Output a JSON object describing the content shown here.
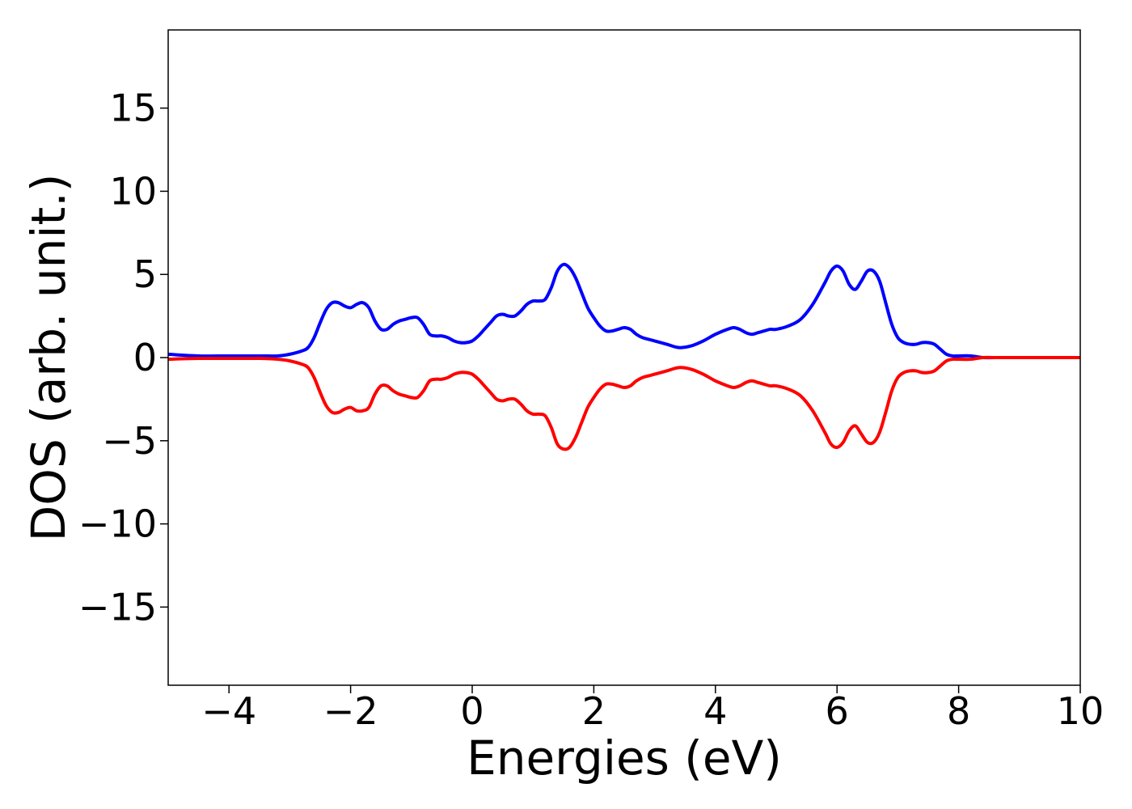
{
  "chart_data": {
    "type": "line",
    "title": "",
    "xlabel": "Energies (eV)",
    "ylabel": "DOS (arb. unit.)",
    "xlim": [
      -5,
      10
    ],
    "ylim": [
      -19.7,
      19.7
    ],
    "grid": false,
    "xticks": [
      -4,
      -2,
      0,
      2,
      4,
      6,
      8,
      10
    ],
    "xtick_labels": [
      "−4",
      "−2",
      "0",
      "2",
      "4",
      "6",
      "8",
      "10"
    ],
    "yticks": [
      15,
      10,
      5,
      0,
      -5,
      -10,
      -15
    ],
    "ytick_labels": [
      "15",
      "10",
      "5",
      "0",
      "−5",
      "−10",
      "−15"
    ],
    "x": [
      -5.0,
      -4.5,
      -4.0,
      -3.5,
      -3.2,
      -3.0,
      -2.8,
      -2.7,
      -2.6,
      -2.5,
      -2.4,
      -2.3,
      -2.2,
      -2.1,
      -2.0,
      -1.9,
      -1.8,
      -1.7,
      -1.6,
      -1.5,
      -1.4,
      -1.3,
      -1.2,
      -1.1,
      -1.0,
      -0.9,
      -0.8,
      -0.7,
      -0.6,
      -0.5,
      -0.4,
      -0.3,
      -0.2,
      -0.1,
      0.0,
      0.1,
      0.2,
      0.3,
      0.4,
      0.5,
      0.6,
      0.7,
      0.8,
      0.9,
      1.0,
      1.1,
      1.2,
      1.3,
      1.4,
      1.5,
      1.6,
      1.7,
      1.8,
      1.9,
      2.0,
      2.1,
      2.2,
      2.3,
      2.4,
      2.5,
      2.6,
      2.7,
      2.8,
      2.9,
      3.0,
      3.2,
      3.4,
      3.6,
      3.8,
      4.0,
      4.2,
      4.3,
      4.4,
      4.5,
      4.6,
      4.7,
      4.8,
      4.9,
      5.0,
      5.2,
      5.4,
      5.6,
      5.8,
      5.9,
      6.0,
      6.1,
      6.2,
      6.3,
      6.4,
      6.5,
      6.6,
      6.7,
      6.8,
      6.9,
      7.0,
      7.1,
      7.2,
      7.3,
      7.4,
      7.5,
      7.6,
      7.7,
      7.8,
      7.9,
      8.0,
      8.2,
      8.4,
      8.6,
      9.0,
      10.0
    ],
    "series": [
      {
        "color": "#0000ff",
        "values": [
          0.2,
          0.1,
          0.1,
          0.1,
          0.1,
          0.2,
          0.4,
          0.6,
          1.2,
          2.1,
          2.9,
          3.3,
          3.3,
          3.1,
          3.0,
          3.2,
          3.3,
          3.0,
          2.2,
          1.7,
          1.7,
          2.0,
          2.2,
          2.3,
          2.4,
          2.4,
          2.0,
          1.4,
          1.3,
          1.3,
          1.2,
          1.0,
          0.9,
          0.9,
          1.0,
          1.3,
          1.7,
          2.1,
          2.5,
          2.6,
          2.5,
          2.5,
          2.8,
          3.2,
          3.4,
          3.4,
          3.5,
          4.2,
          5.2,
          5.6,
          5.4,
          4.8,
          3.9,
          3.0,
          2.4,
          1.9,
          1.6,
          1.6,
          1.7,
          1.8,
          1.7,
          1.4,
          1.2,
          1.1,
          1.0,
          0.8,
          0.6,
          0.7,
          1.0,
          1.4,
          1.7,
          1.8,
          1.7,
          1.5,
          1.4,
          1.5,
          1.6,
          1.7,
          1.7,
          1.9,
          2.3,
          3.2,
          4.5,
          5.2,
          5.5,
          5.2,
          4.4,
          4.1,
          4.6,
          5.2,
          5.2,
          4.6,
          3.3,
          2.0,
          1.2,
          0.9,
          0.8,
          0.8,
          0.9,
          0.9,
          0.8,
          0.5,
          0.2,
          0.1,
          0.1,
          0.1,
          0.0,
          0.0,
          0.0,
          0.0
        ]
      },
      {
        "color": "#ff0000",
        "values": [
          -0.1,
          -0.05,
          -0.05,
          -0.05,
          -0.1,
          -0.2,
          -0.4,
          -0.6,
          -1.2,
          -2.1,
          -2.9,
          -3.3,
          -3.3,
          -3.1,
          -3.0,
          -3.2,
          -3.2,
          -3.0,
          -2.2,
          -1.7,
          -1.7,
          -2.0,
          -2.2,
          -2.3,
          -2.4,
          -2.4,
          -2.0,
          -1.4,
          -1.3,
          -1.3,
          -1.2,
          -1.0,
          -0.9,
          -0.9,
          -1.0,
          -1.3,
          -1.7,
          -2.1,
          -2.5,
          -2.6,
          -2.5,
          -2.5,
          -2.8,
          -3.2,
          -3.4,
          -3.4,
          -3.5,
          -4.2,
          -5.2,
          -5.5,
          -5.4,
          -4.8,
          -3.9,
          -3.0,
          -2.4,
          -1.9,
          -1.6,
          -1.6,
          -1.7,
          -1.8,
          -1.7,
          -1.4,
          -1.2,
          -1.1,
          -1.0,
          -0.8,
          -0.6,
          -0.7,
          -1.0,
          -1.4,
          -1.7,
          -1.8,
          -1.7,
          -1.5,
          -1.4,
          -1.5,
          -1.6,
          -1.7,
          -1.7,
          -1.9,
          -2.3,
          -3.2,
          -4.5,
          -5.2,
          -5.4,
          -5.1,
          -4.4,
          -4.1,
          -4.6,
          -5.1,
          -5.1,
          -4.5,
          -3.3,
          -2.0,
          -1.2,
          -0.9,
          -0.8,
          -0.8,
          -0.9,
          -0.9,
          -0.8,
          -0.5,
          -0.2,
          -0.1,
          -0.1,
          -0.1,
          0.0,
          0.0,
          0.0,
          0.0
        ]
      }
    ]
  }
}
